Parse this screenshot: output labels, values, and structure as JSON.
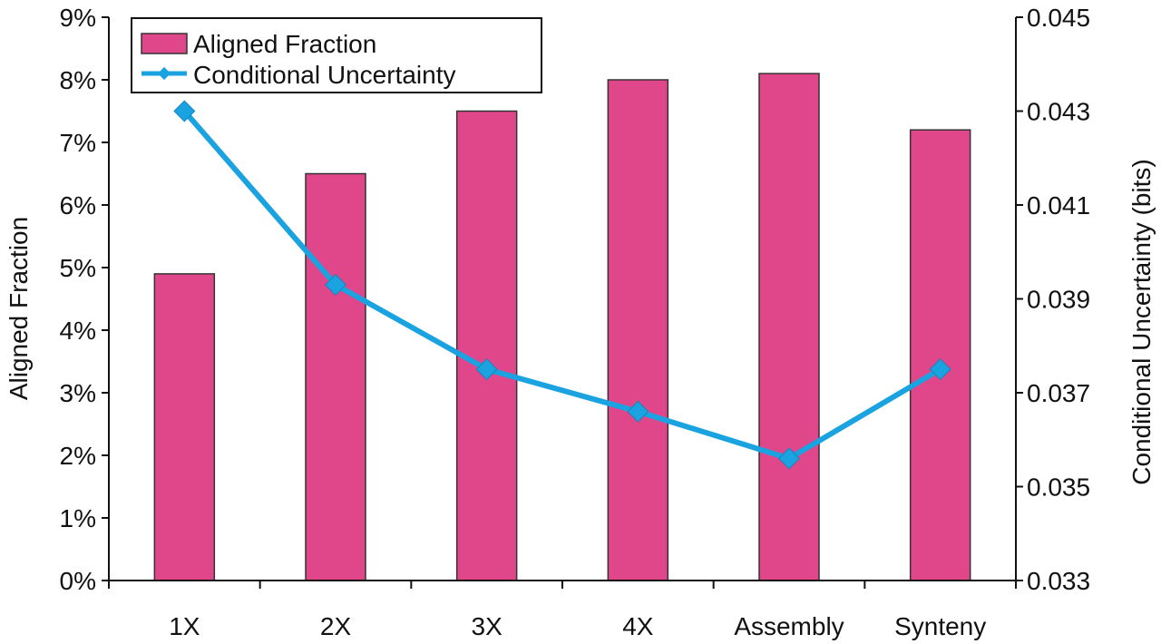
{
  "chart_data": {
    "type": "bar",
    "categories": [
      "1X",
      "2X",
      "3X",
      "4X",
      "Assembly",
      "Synteny"
    ],
    "series": [
      {
        "name": "Aligned Fraction",
        "type": "bar",
        "axis": "left",
        "values": [
          0.049,
          0.065,
          0.075,
          0.08,
          0.081,
          0.072
        ],
        "color": "#e0468a"
      },
      {
        "name": "Conditional Uncertainty",
        "type": "line",
        "axis": "right",
        "values": [
          0.043,
          0.0393,
          0.0375,
          0.0366,
          0.0356,
          0.0375
        ],
        "color": "#1aa3e0"
      }
    ],
    "ylabel": "Aligned Fraction",
    "y2label": "Conditional Uncertainty (bits)",
    "ylim": [
      0,
      0.09
    ],
    "y2lim": [
      0.033,
      0.045
    ],
    "yticks": [
      "0%",
      "1%",
      "2%",
      "3%",
      "4%",
      "5%",
      "6%",
      "7%",
      "8%",
      "9%"
    ],
    "y2ticks": [
      "0.033",
      "0.035",
      "0.037",
      "0.039",
      "0.041",
      "0.043",
      "0.045"
    ],
    "legend": "top-left",
    "grid": false
  }
}
